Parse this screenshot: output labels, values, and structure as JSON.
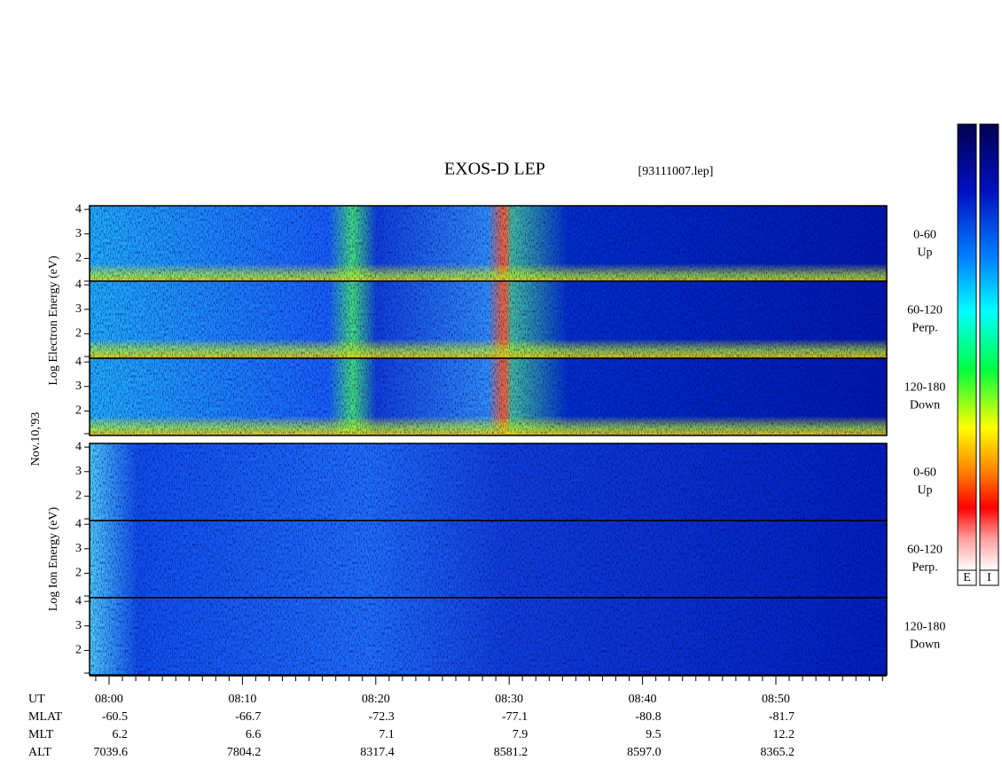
{
  "title": "EXOS-D LEP",
  "file": "[93111007.lep]",
  "date": "Nov.10,'93",
  "ylim": [
    1,
    4.15
  ],
  "yticks": [
    2,
    3,
    4
  ],
  "groups": [
    {
      "axis_label": "Log Electron Energy (eV)",
      "panels": [
        {
          "range": "0-60",
          "direction": "Up"
        },
        {
          "range": "60-120",
          "direction": "Perp."
        },
        {
          "range": "120-180",
          "direction": "Down"
        }
      ]
    },
    {
      "axis_label": "Log Ion Energy (eV)",
      "panels": [
        {
          "range": "0-60",
          "direction": "Up"
        },
        {
          "range": "60-120",
          "direction": "Perp."
        },
        {
          "range": "120-180",
          "direction": "Down"
        }
      ]
    }
  ],
  "colorbars": [
    "E",
    "I"
  ],
  "ephemeris": [
    {
      "name": "UT",
      "values": [
        "08:00",
        "08:10",
        "08:20",
        "08:30",
        "08:40",
        "08:50"
      ]
    },
    {
      "name": "MLAT",
      "values": [
        "-60.5",
        "-66.7",
        "-72.3",
        "-77.1",
        "-80.8",
        "-81.7"
      ]
    },
    {
      "name": "MLT",
      "values": [
        "6.2",
        "6.6",
        "7.1",
        "7.9",
        "9.5",
        "12.2"
      ]
    },
    {
      "name": "ALT",
      "values": [
        "7039.6",
        "7804.2",
        "8317.4",
        "8581.2",
        "8597.0",
        "8365.2"
      ]
    }
  ]
}
